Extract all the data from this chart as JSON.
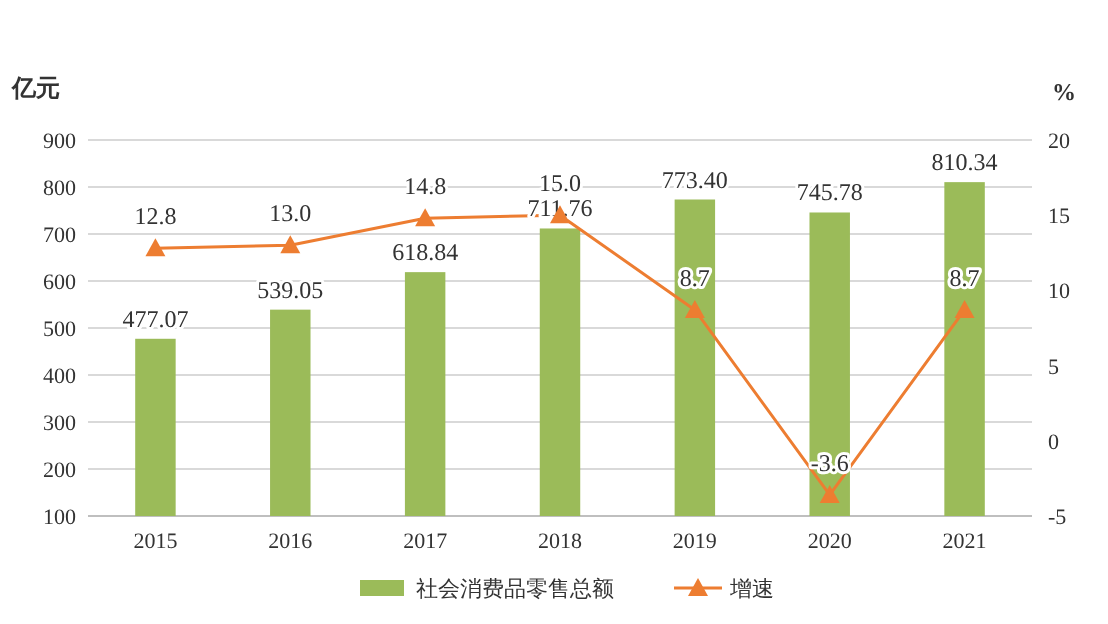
{
  "chart_data": {
    "type": "bar",
    "ylabel": "亿元",
    "y2label": "%",
    "categories": [
      "2015",
      "2016",
      "2017",
      "2018",
      "2019",
      "2020",
      "2021"
    ],
    "series": [
      {
        "name": "社会消费品零售总额",
        "color": "#9bbb59",
        "values": [
          477.07,
          539.05,
          618.84,
          711.76,
          773.4,
          745.78,
          810.34
        ],
        "value_labels": [
          "477.07",
          "539.05",
          "618.84",
          "711.76",
          "773.40",
          "745.78",
          "810.34"
        ]
      },
      {
        "name": "增速",
        "type": "line",
        "axis": "y2",
        "color": "#ed7d31",
        "values": [
          12.8,
          13.0,
          14.8,
          15.0,
          8.7,
          -3.6,
          8.7
        ],
        "value_labels": [
          "12.8",
          "13.0",
          "14.8",
          "15.0",
          "8.7",
          "-3.6",
          "8.7"
        ]
      }
    ],
    "ylim": [
      100,
      900
    ],
    "yticks": [
      100,
      200,
      300,
      400,
      500,
      600,
      700,
      800,
      900
    ],
    "y2lim": [
      -5,
      20
    ],
    "y2ticks": [
      -5,
      0,
      5,
      10,
      15,
      20
    ],
    "grid": "y",
    "legend": "bottom",
    "marker": "triangle",
    "line_style": "solid"
  }
}
